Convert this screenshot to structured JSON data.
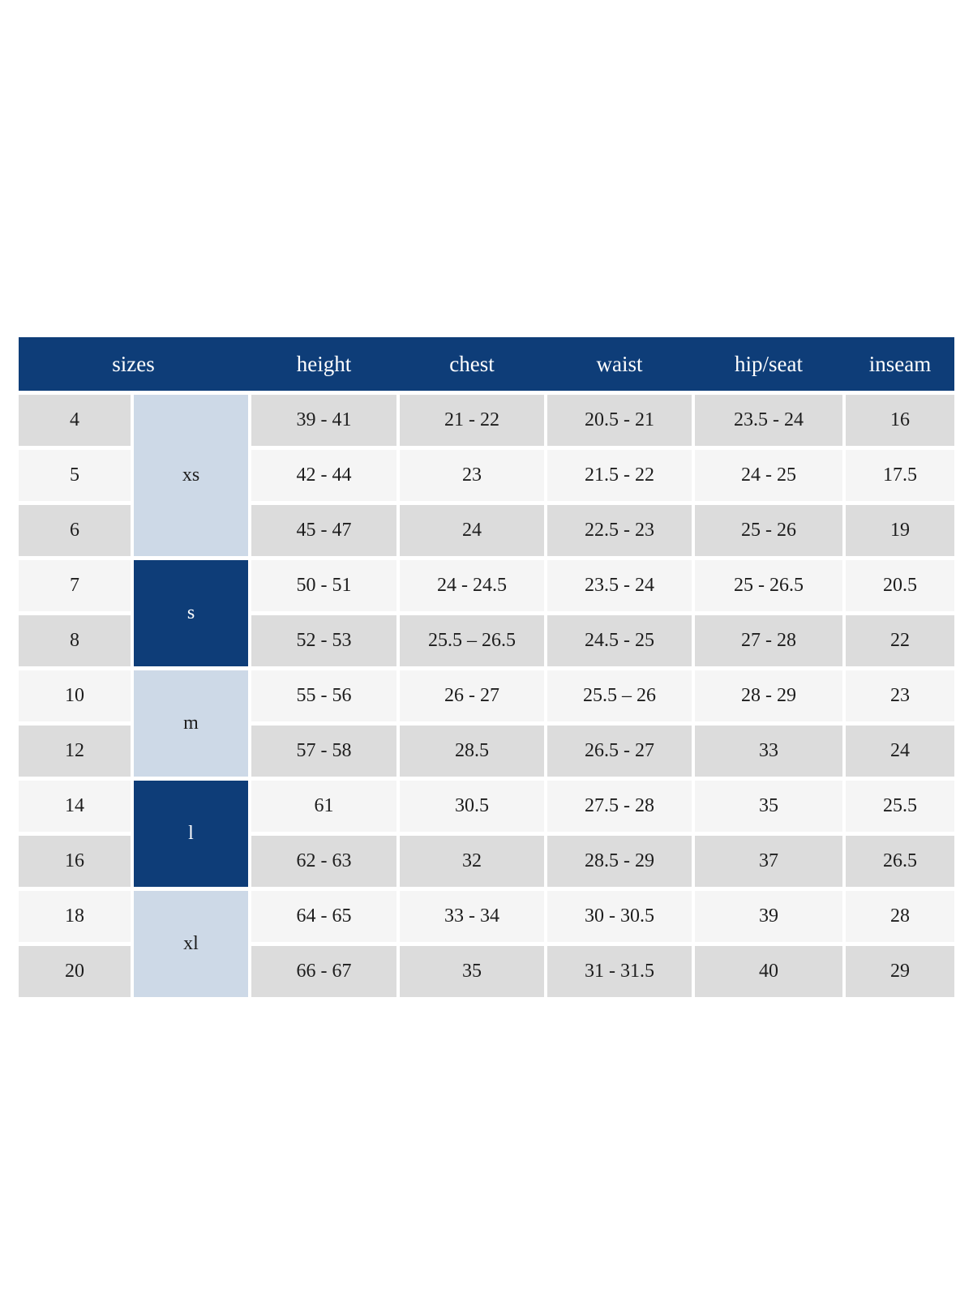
{
  "chart_data": {
    "type": "table",
    "title": "",
    "header": {
      "sizes": "sizes",
      "height": "height",
      "chest": "chest",
      "waist": "waist",
      "hip_seat": "hip/seat",
      "inseam": "inseam"
    },
    "groups": [
      {
        "label": "xs",
        "rows": [
          {
            "size": "4",
            "height": "39 - 41",
            "chest": "21 - 22",
            "waist": "20.5 - 21",
            "hip_seat": "23.5 - 24",
            "inseam": "16"
          },
          {
            "size": "5",
            "height": "42 - 44",
            "chest": "23",
            "waist": "21.5 - 22",
            "hip_seat": "24 - 25",
            "inseam": "17.5"
          },
          {
            "size": "6",
            "height": "45 - 47",
            "chest": "24",
            "waist": "22.5 - 23",
            "hip_seat": "25 - 26",
            "inseam": "19"
          }
        ]
      },
      {
        "label": "s",
        "rows": [
          {
            "size": "7",
            "height": "50 - 51",
            "chest": "24 - 24.5",
            "waist": "23.5 - 24",
            "hip_seat": "25 - 26.5",
            "inseam": "20.5"
          },
          {
            "size": "8",
            "height": "52 - 53",
            "chest": "25.5 – 26.5",
            "waist": "24.5 - 25",
            "hip_seat": "27 - 28",
            "inseam": "22"
          }
        ]
      },
      {
        "label": "m",
        "rows": [
          {
            "size": "10",
            "height": "55 - 56",
            "chest": "26 - 27",
            "waist": "25.5 – 26",
            "hip_seat": "28 - 29",
            "inseam": "23"
          },
          {
            "size": "12",
            "height": "57 - 58",
            "chest": "28.5",
            "waist": "26.5 - 27",
            "hip_seat": "33",
            "inseam": "24"
          }
        ]
      },
      {
        "label": "l",
        "rows": [
          {
            "size": "14",
            "height": "61",
            "chest": "30.5",
            "waist": "27.5 - 28",
            "hip_seat": "35",
            "inseam": "25.5"
          },
          {
            "size": "16",
            "height": "62 - 63",
            "chest": "32",
            "waist": "28.5 - 29",
            "hip_seat": "37",
            "inseam": "26.5"
          }
        ]
      },
      {
        "label": "xl",
        "rows": [
          {
            "size": "18",
            "height": "64 - 65",
            "chest": "33 - 34",
            "waist": "30 - 30.5",
            "hip_seat": "39",
            "inseam": "28"
          },
          {
            "size": "20",
            "height": "66 - 67",
            "chest": "35",
            "waist": "31 - 31.5",
            "hip_seat": "40",
            "inseam": "29"
          }
        ]
      }
    ],
    "colors": {
      "header_navy": "#0e3d78",
      "group_light_blue": "#cdd9e7",
      "row_gray": "#dcdcdc",
      "row_light": "#f5f5f5",
      "text_dark": "#1d1d1d",
      "text_white": "#ffffff"
    }
  }
}
